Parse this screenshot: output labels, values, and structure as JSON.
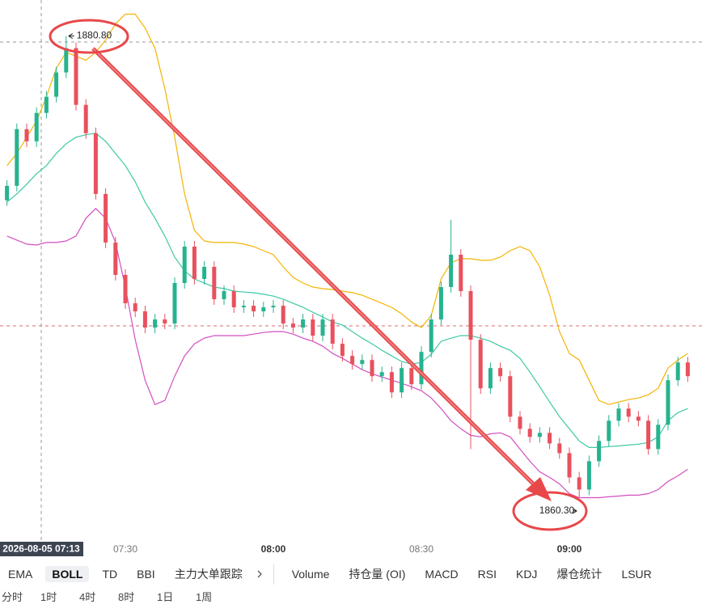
{
  "chart_data": {
    "type": "candlestick",
    "crosshair_label": "2026-08-05 07:13",
    "categories": [
      null,
      null,
      null,
      null,
      null,
      null,
      null,
      null,
      null,
      null,
      null,
      null,
      "07:30",
      null,
      null,
      null,
      null,
      null,
      null,
      null,
      null,
      null,
      null,
      null,
      null,
      null,
      null,
      "08:00",
      null,
      null,
      null,
      null,
      null,
      null,
      null,
      null,
      null,
      null,
      null,
      null,
      null,
      null,
      "08:30",
      null,
      null,
      null,
      null,
      null,
      null,
      null,
      null,
      null,
      null,
      null,
      null,
      null,
      null,
      "09:00",
      null,
      null,
      null,
      null,
      null,
      null,
      null,
      null,
      null,
      null,
      null,
      null
    ],
    "open": [
      1873.5,
      1874.14,
      1876.66,
      1876.12,
      1877.38,
      1878.1,
      1879.18,
      1880.26,
      1877.74,
      1876.48,
      1873.78,
      1871.62,
      1870.18,
      1868.92,
      1868.56,
      1867.84,
      1868.2,
      1868.02,
      1869.82,
      1871.44,
      1870.0,
      1870.54,
      1869.1,
      1869.46,
      1868.74,
      1868.81,
      1868.56,
      1868.74,
      1868.81,
      1868.02,
      1867.84,
      1868.2,
      1867.48,
      1868.2,
      1867.12,
      1866.58,
      1866.22,
      1866.4,
      1865.68,
      1865.86,
      1864.96,
      1866.04,
      1865.32,
      1866.76,
      1868.2,
      1869.64,
      1871.08,
      1869.46,
      1867.3,
      1865.14,
      1866.04,
      1865.68,
      1863.88,
      1863.34,
      1862.98,
      1863.16,
      1862.69,
      1862.26,
      1861.18,
      1860.64,
      1861.9,
      1862.8,
      1863.7,
      1864.24,
      1863.88,
      1863.7,
      1862.44,
      1863.52,
      1865.5,
      1866.29
    ],
    "high": [
      1874.39,
      1876.91,
      1876.91,
      1877.63,
      1878.35,
      1879.43,
      1880.8,
      1880.51,
      1877.99,
      1876.73,
      1874.03,
      1871.87,
      1870.43,
      1869.17,
      1868.81,
      1868.45,
      1868.45,
      1870.07,
      1871.69,
      1871.69,
      1870.79,
      1870.79,
      1869.71,
      1869.71,
      1869.06,
      1869.06,
      1868.99,
      1869.06,
      1869.06,
      1868.27,
      1868.45,
      1868.45,
      1868.45,
      1868.45,
      1867.37,
      1866.83,
      1866.65,
      1866.65,
      1866.11,
      1866.11,
      1866.29,
      1866.29,
      1867.01,
      1868.45,
      1869.89,
      1872.63,
      1871.33,
      1869.71,
      1867.55,
      1866.29,
      1866.29,
      1865.93,
      1864.13,
      1863.59,
      1863.41,
      1863.41,
      1862.94,
      1862.51,
      1861.43,
      1862.15,
      1863.05,
      1863.95,
      1864.49,
      1864.49,
      1864.13,
      1863.95,
      1863.77,
      1865.75,
      1866.54,
      1866.54
    ],
    "low": [
      1873.25,
      1873.89,
      1875.87,
      1875.87,
      1877.13,
      1877.85,
      1878.93,
      1877.49,
      1876.23,
      1873.53,
      1871.37,
      1869.93,
      1868.67,
      1868.31,
      1867.59,
      1867.59,
      1867.77,
      1867.77,
      1869.57,
      1869.75,
      1869.75,
      1868.85,
      1868.85,
      1868.49,
      1868.49,
      1868.31,
      1868.31,
      1868.49,
      1867.77,
      1867.59,
      1867.59,
      1867.23,
      1867.23,
      1866.87,
      1866.33,
      1865.97,
      1865.97,
      1865.43,
      1865.43,
      1864.71,
      1864.71,
      1865.07,
      1865.07,
      1866.51,
      1867.95,
      1869.39,
      1869.21,
      1862.44,
      1864.89,
      1864.89,
      1865.43,
      1863.63,
      1863.09,
      1862.73,
      1862.73,
      1862.44,
      1862.01,
      1860.93,
      1860.3,
      1860.39,
      1861.65,
      1862.55,
      1863.45,
      1863.63,
      1863.45,
      1862.19,
      1862.19,
      1863.27,
      1865.25,
      1865.43
    ],
    "close": [
      1874.14,
      1876.66,
      1876.12,
      1877.38,
      1878.1,
      1879.18,
      1880.26,
      1877.74,
      1876.48,
      1873.78,
      1871.62,
      1870.18,
      1868.92,
      1868.56,
      1867.84,
      1868.2,
      1868.02,
      1869.82,
      1871.44,
      1870.0,
      1870.54,
      1869.1,
      1869.46,
      1868.74,
      1868.81,
      1868.56,
      1868.74,
      1868.81,
      1868.02,
      1867.84,
      1868.2,
      1867.48,
      1868.2,
      1867.12,
      1866.58,
      1866.22,
      1866.4,
      1865.68,
      1865.86,
      1864.96,
      1866.04,
      1865.32,
      1866.76,
      1868.2,
      1869.64,
      1871.08,
      1869.46,
      1867.3,
      1865.14,
      1866.04,
      1865.68,
      1863.88,
      1863.34,
      1862.98,
      1863.16,
      1862.69,
      1862.26,
      1861.18,
      1860.64,
      1861.9,
      1862.8,
      1863.7,
      1864.24,
      1863.88,
      1863.7,
      1862.44,
      1863.52,
      1865.5,
      1866.29,
      1865.68
    ],
    "up_color": "#26b38f",
    "down_color": "#e8515d",
    "bands": [
      {
        "color": "#f4b400",
        "values": [
          1875.04,
          1875.58,
          1876.3,
          1877.02,
          1878.1,
          1879.36,
          1880.08,
          1879.9,
          1879.72,
          1880.08,
          1880.62,
          1881.34,
          1881.77,
          1881.77,
          1881.16,
          1880.26,
          1878.46,
          1876.3,
          1873.78,
          1872.16,
          1871.69,
          1871.62,
          1871.62,
          1871.62,
          1871.55,
          1871.44,
          1871.26,
          1871.08,
          1870.54,
          1870.07,
          1869.82,
          1869.64,
          1869.57,
          1869.53,
          1869.46,
          1869.39,
          1869.28,
          1869.1,
          1868.92,
          1868.74,
          1868.45,
          1868.09,
          1867.84,
          1868.38,
          1870.0,
          1870.72,
          1870.9,
          1870.9,
          1870.83,
          1870.83,
          1870.97,
          1871.26,
          1871.44,
          1871.26,
          1870.54,
          1869.28,
          1867.66,
          1866.69,
          1866.4,
          1865.5,
          1864.6,
          1864.42,
          1864.53,
          1864.64,
          1864.71,
          1864.85,
          1865.14,
          1866.04,
          1866.4,
          1866.69
        ]
      },
      {
        "color": "#3dc9a4",
        "values": [
          1873.42,
          1873.78,
          1874.21,
          1874.68,
          1875.04,
          1875.58,
          1876.01,
          1876.3,
          1876.41,
          1876.48,
          1876.12,
          1875.58,
          1875.04,
          1874.32,
          1873.42,
          1872.7,
          1871.91,
          1870.97,
          1870.36,
          1870.0,
          1869.82,
          1869.64,
          1869.57,
          1869.46,
          1869.42,
          1869.39,
          1869.32,
          1869.24,
          1869.1,
          1868.92,
          1868.74,
          1868.52,
          1868.31,
          1868.09,
          1867.95,
          1867.66,
          1867.37,
          1867.12,
          1866.83,
          1866.58,
          1866.33,
          1866.22,
          1866.29,
          1866.65,
          1867.23,
          1867.37,
          1867.48,
          1867.48,
          1867.37,
          1867.23,
          1867.01,
          1866.83,
          1866.47,
          1865.86,
          1865.21,
          1864.53,
          1863.88,
          1863.34,
          1862.8,
          1862.51,
          1862.51,
          1862.55,
          1862.58,
          1862.62,
          1862.66,
          1862.73,
          1862.98,
          1863.7,
          1864.06,
          1864.24
        ]
      },
      {
        "color": "#d24fc0",
        "values": [
          1871.91,
          1871.73,
          1871.55,
          1871.51,
          1871.62,
          1871.62,
          1871.69,
          1871.91,
          1872.7,
          1873.13,
          1872.7,
          1871.62,
          1869.64,
          1867.3,
          1865.5,
          1864.42,
          1864.6,
          1865.68,
          1866.58,
          1867.12,
          1867.37,
          1867.48,
          1867.48,
          1867.48,
          1867.48,
          1867.55,
          1867.62,
          1867.66,
          1867.66,
          1867.55,
          1867.37,
          1867.23,
          1867.01,
          1866.69,
          1866.47,
          1866.22,
          1865.97,
          1865.79,
          1865.64,
          1865.5,
          1865.36,
          1865.21,
          1865.03,
          1864.71,
          1864.24,
          1863.7,
          1863.34,
          1863.05,
          1862.98,
          1863.12,
          1863.16,
          1862.98,
          1862.44,
          1861.9,
          1861.43,
          1861.18,
          1860.89,
          1860.46,
          1860.28,
          1860.28,
          1860.28,
          1860.32,
          1860.35,
          1860.39,
          1860.39,
          1860.46,
          1860.64,
          1861.0,
          1861.25,
          1861.54
        ]
      }
    ],
    "annotations": [
      {
        "value": 1880.8,
        "label": "1880.80"
      },
      {
        "value": 1860.3,
        "label": "1860.30"
      }
    ],
    "ylim": [
      1858.5,
      1882.4
    ]
  },
  "toolbar": {
    "indicators": [
      "EMA",
      "BOLL",
      "TD",
      "BBI",
      "主力大单跟踪"
    ],
    "selected": 1,
    "sub_indicators": [
      "Volume",
      "持仓量 (OI)",
      "MACD",
      "RSI",
      "KDJ",
      "爆仓统计",
      "LSUR"
    ],
    "periods": [
      "分时",
      "1时",
      "4时",
      "8时",
      "1日",
      "1周"
    ]
  }
}
